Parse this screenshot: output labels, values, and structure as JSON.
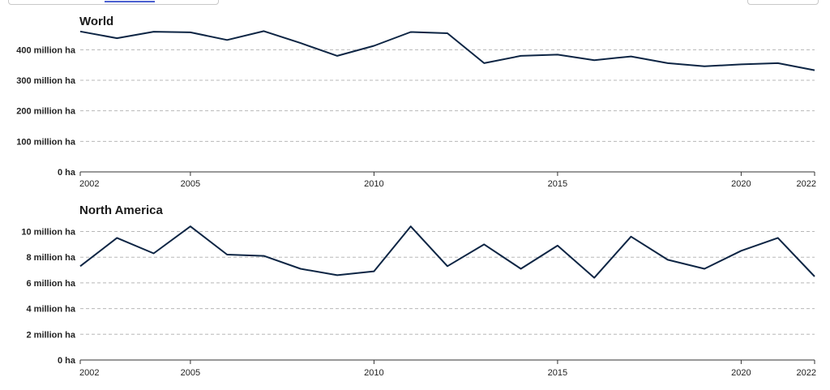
{
  "chart_data": [
    {
      "type": "line",
      "title": "World",
      "x": [
        2002,
        2003,
        2004,
        2005,
        2006,
        2007,
        2008,
        2009,
        2010,
        2011,
        2012,
        2013,
        2014,
        2015,
        2016,
        2017,
        2018,
        2019,
        2020,
        2021,
        2022
      ],
      "series": [
        {
          "values": [
            460,
            438,
            459,
            457,
            432,
            461,
            422,
            380,
            413,
            458,
            454,
            356,
            380,
            384,
            366,
            378,
            356,
            346,
            352,
            356,
            333
          ]
        }
      ],
      "ylim": [
        0,
        470
      ],
      "yticks": [
        0,
        100,
        200,
        300,
        400
      ],
      "ytick_labels": [
        "0 ha",
        "100 million ha",
        "200 million ha",
        "300 million ha",
        "400 million ha"
      ],
      "xticks": [
        2002,
        2005,
        2010,
        2015,
        2020,
        2022
      ],
      "xtick_labels": [
        "2002",
        "2005",
        "2010",
        "2015",
        "2020",
        "2022"
      ],
      "grid": true,
      "line_color": "#0d2544"
    },
    {
      "type": "line",
      "title": "North America",
      "x": [
        2002,
        2003,
        2004,
        2005,
        2006,
        2007,
        2008,
        2009,
        2010,
        2011,
        2012,
        2013,
        2014,
        2015,
        2016,
        2017,
        2018,
        2019,
        2020,
        2021,
        2022
      ],
      "series": [
        {
          "values": [
            7.3,
            9.5,
            8.3,
            10.4,
            8.2,
            8.1,
            7.1,
            6.6,
            6.9,
            10.4,
            7.3,
            9.0,
            7.1,
            8.9,
            6.4,
            9.6,
            7.8,
            7.1,
            8.5,
            9.5,
            6.5
          ]
        }
      ],
      "ylim": [
        0,
        10.6
      ],
      "yticks": [
        0,
        2,
        4,
        6,
        8,
        10
      ],
      "ytick_labels": [
        "0 ha",
        "2 million ha",
        "4 million ha",
        "6 million ha",
        "8 million ha",
        "10 million ha"
      ],
      "xticks": [
        2002,
        2005,
        2010,
        2015,
        2020,
        2022
      ],
      "xtick_labels": [
        "2002",
        "2005",
        "2010",
        "2015",
        "2020",
        "2022"
      ],
      "grid": true,
      "line_color": "#0d2544"
    }
  ]
}
